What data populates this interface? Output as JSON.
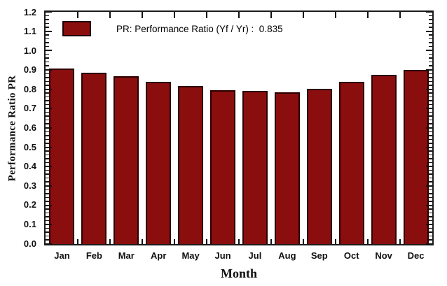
{
  "chart_data": {
    "type": "bar",
    "title": "",
    "xlabel": "Month",
    "ylabel": "Performance Ratio PR",
    "categories": [
      "Jan",
      "Feb",
      "Mar",
      "Apr",
      "May",
      "Jun",
      "Jul",
      "Aug",
      "Sep",
      "Oct",
      "Nov",
      "Dec"
    ],
    "values": [
      0.908,
      0.886,
      0.866,
      0.84,
      0.818,
      0.796,
      0.79,
      0.786,
      0.801,
      0.839,
      0.875,
      0.899
    ],
    "ylim": [
      0.0,
      1.2
    ],
    "ytick_step": 0.1,
    "ytick_minor_step": 0.02,
    "ytick_labels": [
      "0.0",
      "0.1",
      "0.2",
      "0.3",
      "0.4",
      "0.5",
      "0.6",
      "0.7",
      "0.8",
      "0.9",
      "1.0",
      "1.1",
      "1.2"
    ],
    "grid": false,
    "legend_position": "top-left",
    "legend": {
      "label": "PR: Performance Ratio (Yf / Yr) :  0.835",
      "swatch_color": "#8B0E0E"
    },
    "bar_color": "#8B0E0E",
    "bar_border_color": "#2B0000",
    "frame_color": "#1B1B1B",
    "background_color": "#FFFFFF"
  }
}
